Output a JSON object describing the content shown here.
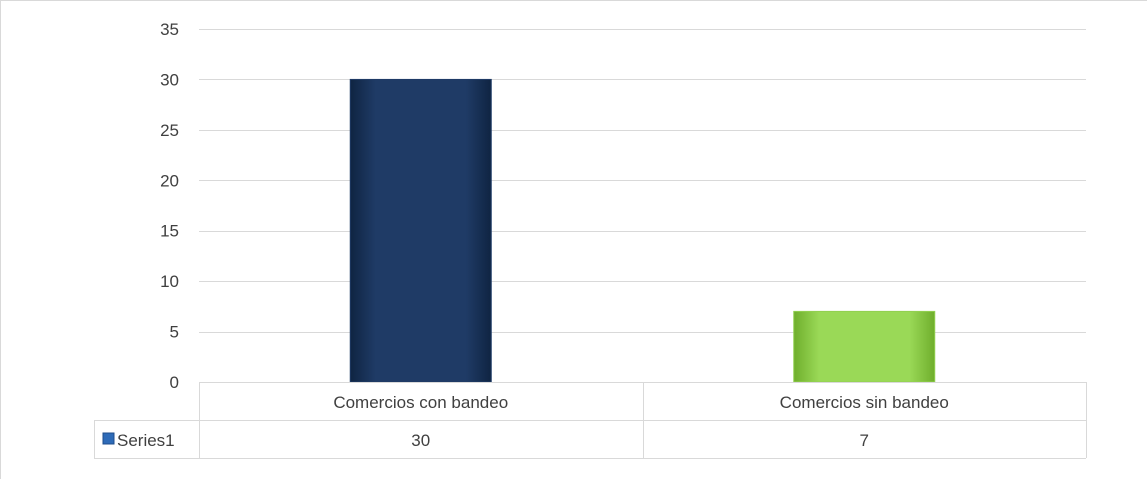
{
  "chart_data": {
    "type": "bar",
    "categories": [
      "Comercios con bandeo",
      "Comercios sin bandeo"
    ],
    "series": [
      {
        "name": "Series1",
        "values": [
          30,
          7
        ]
      }
    ],
    "ylim": [
      0,
      35
    ],
    "yticks": [
      0,
      5,
      10,
      15,
      20,
      25,
      30,
      35
    ],
    "grid": true,
    "legend": "data-table",
    "bar_colors": [
      "#1f3b66",
      "#92d050"
    ],
    "legend_key_color": "#2e6bb8",
    "title": "",
    "xlabel": "",
    "ylabel": ""
  }
}
